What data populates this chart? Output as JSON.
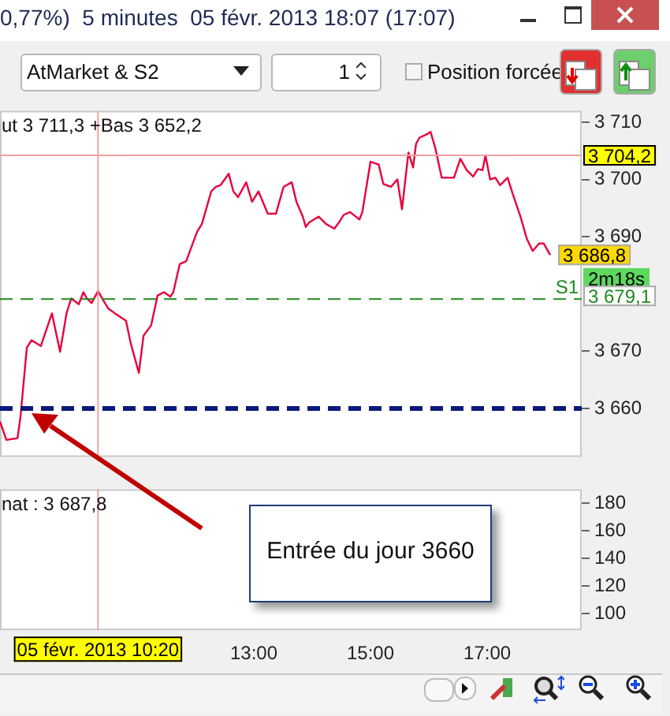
{
  "chart_data": [
    {
      "type": "line",
      "title": "0,77%)  5 minutes  05 févr. 2013 18:07 (17:07)",
      "subtitle": "ut 3 711,3 +Bas 3 652,2",
      "x": [
        8.65,
        8.76,
        8.95,
        9.0,
        9.11,
        9.19,
        9.35,
        9.54,
        9.68,
        9.79,
        9.87,
        10.0,
        10.08,
        10.14,
        10.22,
        10.33,
        10.43,
        10.51,
        10.62,
        10.81,
        10.89,
        11.03,
        11.11,
        11.24,
        11.35,
        11.46,
        11.57,
        11.62,
        11.73,
        11.84,
        12.03,
        12.11,
        12.27,
        12.35,
        12.43,
        12.57,
        12.65,
        12.73,
        12.87,
        12.97,
        13.08,
        13.24,
        13.38,
        13.51,
        13.65,
        13.73,
        13.84,
        13.89,
        13.95,
        14.11,
        14.24,
        14.38,
        14.46,
        14.54,
        14.65,
        14.81,
        14.86,
        15.0,
        15.14,
        15.22,
        15.35,
        15.46,
        15.54,
        15.65,
        15.73,
        15.78,
        15.84,
        15.95,
        16.03,
        16.11,
        16.22,
        16.35,
        16.43,
        16.54,
        16.65,
        16.76,
        16.84,
        16.92,
        16.97,
        17.05,
        17.14,
        17.22,
        17.35,
        17.43,
        17.57,
        17.68,
        17.78,
        17.89,
        17.97,
        18.08
      ],
      "series": [
        {
          "values": [
            3657.7,
            3654.5,
            3654.8,
            3658.4,
            3670.6,
            3671.9,
            3670.9,
            3676.6,
            3669.9,
            3676.6,
            3679.2,
            3678.2,
            3680.3,
            3679.2,
            3678.4,
            3680.5,
            3678.7,
            3677.4,
            3676.6,
            3675.3,
            3671.4,
            3666.2,
            3672.7,
            3674.5,
            3679.7,
            3680.3,
            3679.5,
            3680.3,
            3685.2,
            3685.7,
            3690.9,
            3692.2,
            3697.9,
            3698.7,
            3699.0,
            3701.0,
            3697.9,
            3696.9,
            3699.5,
            3696.1,
            3697.9,
            3694.0,
            3694.0,
            3698.7,
            3699.5,
            3696.1,
            3693.5,
            3691.7,
            3692.5,
            3693.5,
            3692.2,
            3691.4,
            3692.5,
            3693.8,
            3694.3,
            3693.0,
            3694.3,
            3703.1,
            3702.6,
            3699.2,
            3698.7,
            3700.0,
            3694.8,
            3704.7,
            3702.1,
            3706.2,
            3707.3,
            3707.8,
            3708.3,
            3705.5,
            3700.3,
            3700.3,
            3700.3,
            3703.6,
            3701.6,
            3700.5,
            3701.8,
            3701.6,
            3704.2,
            3700.0,
            3700.3,
            3699.0,
            3700.3,
            3697.7,
            3693.5,
            3689.6,
            3687.5,
            3688.8,
            3688.8,
            3686.8
          ],
          "color": "#e8003c",
          "value_labels": [
            null,
            null,
            null,
            null,
            null,
            null,
            null,
            null,
            null,
            null,
            null,
            null,
            null,
            null,
            null,
            null,
            null,
            null,
            null,
            null,
            null,
            null,
            null,
            null,
            null,
            null,
            null,
            null,
            null,
            null,
            null,
            null,
            null,
            null,
            null,
            null,
            null,
            null,
            null,
            null,
            null,
            null,
            null,
            null,
            null,
            null,
            null,
            null,
            null,
            null,
            null,
            null,
            null,
            null,
            null,
            null,
            null,
            null,
            null,
            null,
            null,
            null,
            null,
            null,
            null,
            null,
            null,
            null,
            null,
            null,
            null,
            null,
            null,
            null,
            null,
            null,
            null,
            null,
            null,
            null,
            null,
            null,
            null,
            null,
            null,
            null,
            null,
            null,
            null,
            "3 686,8"
          ]
        }
      ],
      "xlim": [
        8.65,
        18.62
      ],
      "ylim": [
        3651.5,
        3712
      ],
      "yticks": [
        {
          "value": 3660,
          "label": "3 660"
        },
        {
          "value": 3670,
          "label": "3 670"
        },
        {
          "value": 3690,
          "label": "3 690"
        },
        {
          "value": 3700,
          "label": "3 700"
        },
        {
          "value": 3710,
          "label": "3 710"
        }
      ],
      "tick_labels": "y",
      "grid": false,
      "legend": false,
      "marker": "none",
      "line_style": "solid",
      "ref_lines": [
        {
          "axis": "y",
          "value": 3704.2,
          "label": "3 704,2",
          "color": "#f4a0a0",
          "line_style": "solid"
        },
        {
          "axis": "y",
          "value": 3679.1,
          "label": "S1",
          "color": "#1e8a1e",
          "line_style": "dashed"
        },
        {
          "axis": "y",
          "value": 3660,
          "color": "#0a1a7a",
          "line_style": "dashed"
        },
        {
          "axis": "x",
          "value": 10.33,
          "color": "#f4a0a0",
          "line_style": "solid"
        }
      ],
      "annotations": [
        "AtMarket & S2",
        "1",
        "Position forcée",
        "Entrée du jour 3660",
        "2m18s",
        {
          "text": "3 679,1",
          "x": 18.62,
          "y": 3679.1
        }
      ]
    },
    {
      "type": "line",
      "xlim": [
        8.65,
        18.62
      ],
      "ylim": [
        88,
        190
      ],
      "xticks": [
        {
          "value": 13,
          "label": "13:00"
        },
        {
          "value": 15,
          "label": "15:00"
        },
        {
          "value": 17,
          "label": "17:00"
        }
      ],
      "yticks": [
        100,
        120,
        140,
        160,
        180
      ],
      "grid": false,
      "legend": false,
      "ref_lines": [
        {
          "axis": "x",
          "value": 10.33,
          "label": "05 févr. 2013 10:20",
          "color": "#f4a0a0",
          "line_style": "solid"
        }
      ],
      "annotations": [
        "nat : 3 687,8"
      ]
    }
  ]
}
